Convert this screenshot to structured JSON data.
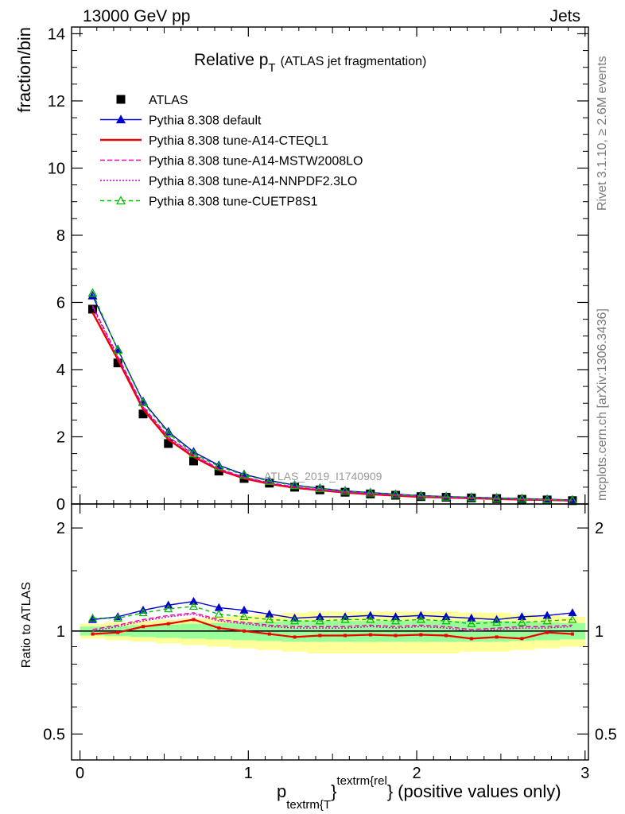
{
  "header": {
    "left": "13000 GeV pp",
    "right": "Jets"
  },
  "side_text": {
    "top": "Rivet 3.1.10, ≥ 2.6M events",
    "bottom": "mcplots.cern.ch [arXiv:1306.3436]"
  },
  "plot": {
    "title_main": "Relative p",
    "title_sub": "T",
    "title_rest": "(ATLAS jet fragmentation)",
    "watermark": "ATLAS_2019_I1740909",
    "ylabel_top": "fraction/bin",
    "ylabel_bottom": "Ratio to ATLAS",
    "xlabel_p": "p",
    "xlabel_sub": "textrm{T",
    "xlabel_sup": "textrm{rel",
    "xlabel_brace1": "}",
    "xlabel_brace2": "}",
    "xlabel_rest": "(positive values only)"
  },
  "colors": {
    "atlas": "#000000",
    "default": "#0000cc",
    "cteql1": "#ee0000",
    "mstw": "#ee00aa",
    "nnpdf": "#cc00cc",
    "cuetp8s1": "#00bb00",
    "band_outer": "#ffff99",
    "band_inner": "#99ff99"
  },
  "chart_data": {
    "type": "line",
    "x": [
      0.075,
      0.225,
      0.375,
      0.525,
      0.675,
      0.825,
      0.975,
      1.125,
      1.275,
      1.425,
      1.575,
      1.725,
      1.875,
      2.025,
      2.175,
      2.325,
      2.475,
      2.625,
      2.775,
      2.925
    ],
    "xlim": [
      -0.05,
      3.02
    ],
    "xticks": [
      "0",
      "1",
      "2",
      "3"
    ],
    "top_panel": {
      "ylim": [
        0,
        14.2
      ],
      "yticks": [
        "0",
        "2",
        "4",
        "6",
        "8",
        "10",
        "12",
        "14"
      ],
      "series": [
        {
          "name": "ATLAS",
          "key": "atlas",
          "values": [
            5.8,
            4.2,
            2.68,
            1.8,
            1.28,
            0.98,
            0.76,
            0.62,
            0.5,
            0.42,
            0.35,
            0.3,
            0.26,
            0.22,
            0.2,
            0.18,
            0.16,
            0.14,
            0.12,
            0.1
          ]
        },
        {
          "name": "Pythia 8.308 default",
          "key": "default",
          "values": [
            6.2,
            4.6,
            3.05,
            2.15,
            1.55,
            1.15,
            0.88,
            0.7,
            0.56,
            0.47,
            0.39,
            0.34,
            0.29,
            0.25,
            0.22,
            0.2,
            0.18,
            0.16,
            0.14,
            0.12
          ]
        },
        {
          "name": "Pythia 8.308 tune-A14-CTEQL1",
          "key": "cteql1",
          "values": [
            5.7,
            4.3,
            2.82,
            1.92,
            1.4,
            1.01,
            0.76,
            0.6,
            0.48,
            0.41,
            0.34,
            0.29,
            0.25,
            0.21,
            0.19,
            0.17,
            0.15,
            0.13,
            0.12,
            0.1
          ]
        },
        {
          "name": "Pythia 8.308 tune-A14-MSTW2008LO",
          "key": "mstw",
          "values": [
            5.9,
            4.4,
            2.9,
            2.0,
            1.47,
            1.05,
            0.8,
            0.63,
            0.51,
            0.43,
            0.36,
            0.31,
            0.27,
            0.23,
            0.2,
            0.18,
            0.16,
            0.14,
            0.12,
            0.1
          ]
        },
        {
          "name": "Pythia 8.308 tune-A14-NNPDF2.3LO",
          "key": "nnpdf",
          "values": [
            5.85,
            4.37,
            2.88,
            1.98,
            1.45,
            1.03,
            0.79,
            0.62,
            0.5,
            0.42,
            0.35,
            0.3,
            0.26,
            0.22,
            0.2,
            0.18,
            0.16,
            0.14,
            0.12,
            0.1
          ]
        },
        {
          "name": "Pythia 8.308 tune-CUETP8S1",
          "key": "cuetp8s1",
          "values": [
            6.28,
            4.58,
            3.02,
            2.1,
            1.5,
            1.12,
            0.86,
            0.68,
            0.55,
            0.46,
            0.38,
            0.33,
            0.28,
            0.24,
            0.21,
            0.19,
            0.17,
            0.15,
            0.13,
            0.11
          ]
        }
      ]
    },
    "ratio_panel": {
      "ylim": [
        0.42,
        2.35
      ],
      "yscale": "log",
      "yticks": [
        "0.5",
        "1",
        "2"
      ],
      "band_outer_low": [
        0.95,
        0.94,
        0.93,
        0.92,
        0.91,
        0.9,
        0.89,
        0.88,
        0.87,
        0.86,
        0.86,
        0.86,
        0.86,
        0.86,
        0.86,
        0.87,
        0.87,
        0.88,
        0.89,
        0.9
      ],
      "band_outer_high": [
        1.05,
        1.06,
        1.07,
        1.08,
        1.09,
        1.1,
        1.11,
        1.12,
        1.13,
        1.14,
        1.14,
        1.14,
        1.14,
        1.14,
        1.14,
        1.13,
        1.13,
        1.12,
        1.11,
        1.1
      ],
      "band_inner_low": [
        0.97,
        0.965,
        0.96,
        0.955,
        0.95,
        0.945,
        0.94,
        0.935,
        0.93,
        0.93,
        0.93,
        0.93,
        0.93,
        0.93,
        0.93,
        0.93,
        0.93,
        0.935,
        0.94,
        0.945
      ],
      "band_inner_high": [
        1.03,
        1.035,
        1.04,
        1.045,
        1.05,
        1.055,
        1.06,
        1.065,
        1.07,
        1.07,
        1.07,
        1.07,
        1.07,
        1.07,
        1.07,
        1.07,
        1.07,
        1.065,
        1.06,
        1.055
      ],
      "series": [
        {
          "name": "Pythia 8.308 default",
          "key": "default",
          "values": [
            1.08,
            1.1,
            1.15,
            1.19,
            1.22,
            1.17,
            1.15,
            1.12,
            1.09,
            1.1,
            1.1,
            1.11,
            1.1,
            1.11,
            1.1,
            1.09,
            1.08,
            1.1,
            1.11,
            1.13
          ]
        },
        {
          "name": "Pythia 8.308 tune-A14-CTEQL1",
          "key": "cteql1",
          "values": [
            0.98,
            0.99,
            1.03,
            1.05,
            1.08,
            1.02,
            1.0,
            0.98,
            0.96,
            0.97,
            0.97,
            0.975,
            0.97,
            0.975,
            0.97,
            0.95,
            0.96,
            0.95,
            0.99,
            0.98
          ]
        },
        {
          "name": "Pythia 8.308 tune-A14-MSTW2008LO",
          "key": "mstw",
          "values": [
            1.01,
            1.04,
            1.08,
            1.11,
            1.13,
            1.08,
            1.06,
            1.04,
            1.03,
            1.03,
            1.03,
            1.04,
            1.03,
            1.04,
            1.03,
            1.01,
            1.02,
            1.03,
            1.03,
            1.04
          ]
        },
        {
          "name": "Pythia 8.308 tune-A14-NNPDF2.3LO",
          "key": "nnpdf",
          "values": [
            1.0,
            1.03,
            1.07,
            1.1,
            1.12,
            1.07,
            1.05,
            1.03,
            1.02,
            1.02,
            1.02,
            1.03,
            1.02,
            1.03,
            1.02,
            1.0,
            1.01,
            1.02,
            1.02,
            1.03
          ]
        },
        {
          "name": "Pythia 8.308 tune-CUETP8S1",
          "key": "cuetp8s1",
          "values": [
            1.09,
            1.09,
            1.13,
            1.16,
            1.18,
            1.12,
            1.1,
            1.08,
            1.07,
            1.07,
            1.08,
            1.08,
            1.07,
            1.08,
            1.07,
            1.05,
            1.06,
            1.06,
            1.07,
            1.08
          ]
        }
      ]
    },
    "legend": {
      "placement": "top-left",
      "entries": [
        {
          "label": "ATLAS",
          "key": "atlas",
          "marker": "square",
          "dash": ""
        },
        {
          "label": "Pythia 8.308 default",
          "key": "default",
          "marker": "triangle",
          "dash": ""
        },
        {
          "label": "Pythia 8.308 tune-A14-CTEQL1",
          "key": "cteql1",
          "marker": "none",
          "dash": ""
        },
        {
          "label": "Pythia 8.308 tune-A14-MSTW2008LO",
          "key": "mstw",
          "marker": "none",
          "dash": "6,3"
        },
        {
          "label": "Pythia 8.308 tune-A14-NNPDF2.3LO",
          "key": "nnpdf",
          "marker": "none",
          "dash": "2,2"
        },
        {
          "label": "Pythia 8.308 tune-CUETP8S1",
          "key": "cuetp8s1",
          "marker": "open-triangle",
          "dash": "5,4"
        }
      ]
    }
  }
}
